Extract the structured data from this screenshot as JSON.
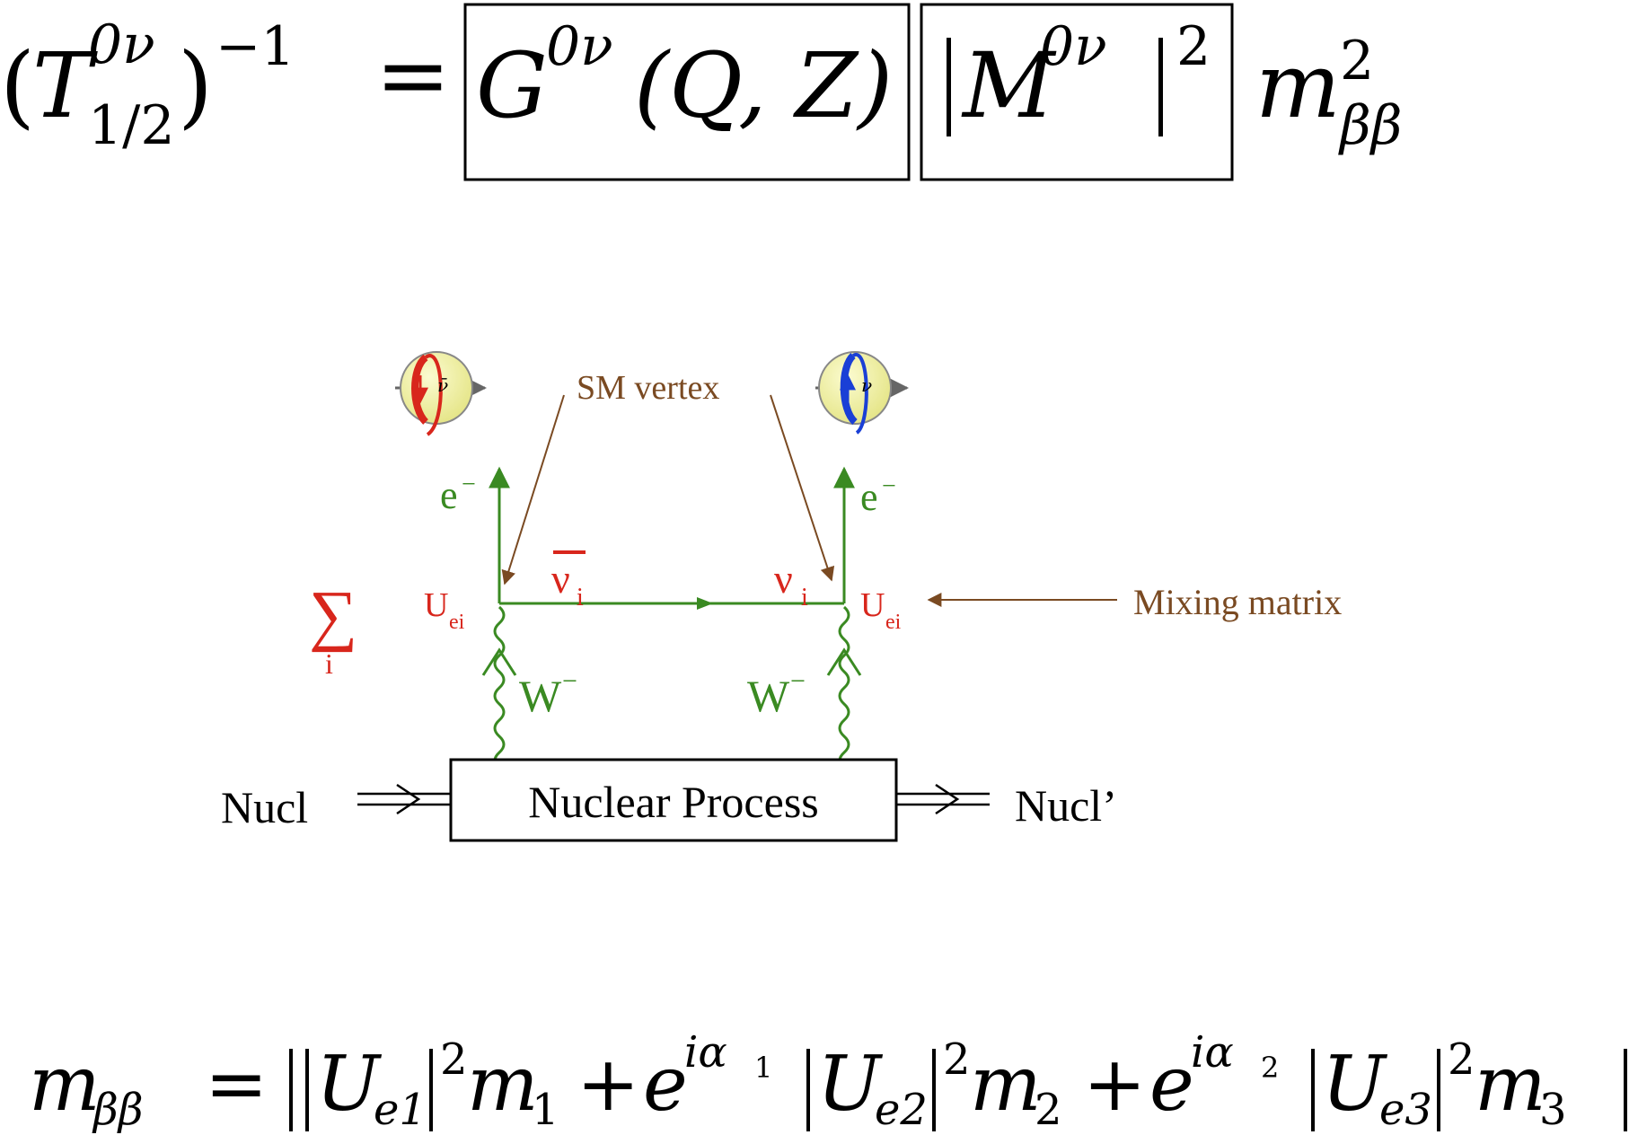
{
  "colors": {
    "green": "#3a8a22",
    "red": "#d8261c",
    "brown": "#7a4a22",
    "black": "#000000",
    "blue": "#1a3fd6",
    "sphere": "#f4f4a8"
  },
  "top_equation": {
    "T": "T",
    "T_sup": "0ν",
    "T_sub": "1/2",
    "inverse_exp": "−1",
    "equals": "=",
    "phase_space_G": "G",
    "phase_space_sup": "0ν",
    "phase_space_args": "(Q, Z)",
    "matrix_element_M": "M",
    "matrix_element_sup": "0ν",
    "matrix_element_exp": "2",
    "mass_m": "m",
    "mass_exp": "2",
    "mass_sub": "ββ"
  },
  "diagram": {
    "sm_vertex_label": "SM vertex",
    "mixing_matrix_label": "Mixing matrix",
    "electron_left": "e",
    "electron_right": "e",
    "electron_charge": "−",
    "antineutrino_label": "ν",
    "neutrino_label": "ν",
    "flavor_index": "i",
    "u_label": "U",
    "u_sub": "ei",
    "sum_symbol": "∑",
    "sum_index": "i",
    "w_left": "W",
    "w_right": "W",
    "w_charge": "−",
    "nucleus_in": "Nucl",
    "nucleus_out": "Nucl’",
    "nuclear_process": "Nuclear Process",
    "helicity_left_symbol": "ν̄",
    "helicity_right_symbol": "ν"
  },
  "bottom_equation": {
    "lhs_m": "m",
    "lhs_sub": "ββ",
    "equals": "=",
    "U": "U",
    "sub_e1": "e1",
    "sub_e2": "e2",
    "sub_e3": "e3",
    "sq": "2",
    "m": "m",
    "m1_sub": "1",
    "m2_sub": "2",
    "m3_sub": "3",
    "plus": "+",
    "e": "e",
    "ialpha": "iα",
    "alpha1": "1",
    "alpha2": "2"
  }
}
